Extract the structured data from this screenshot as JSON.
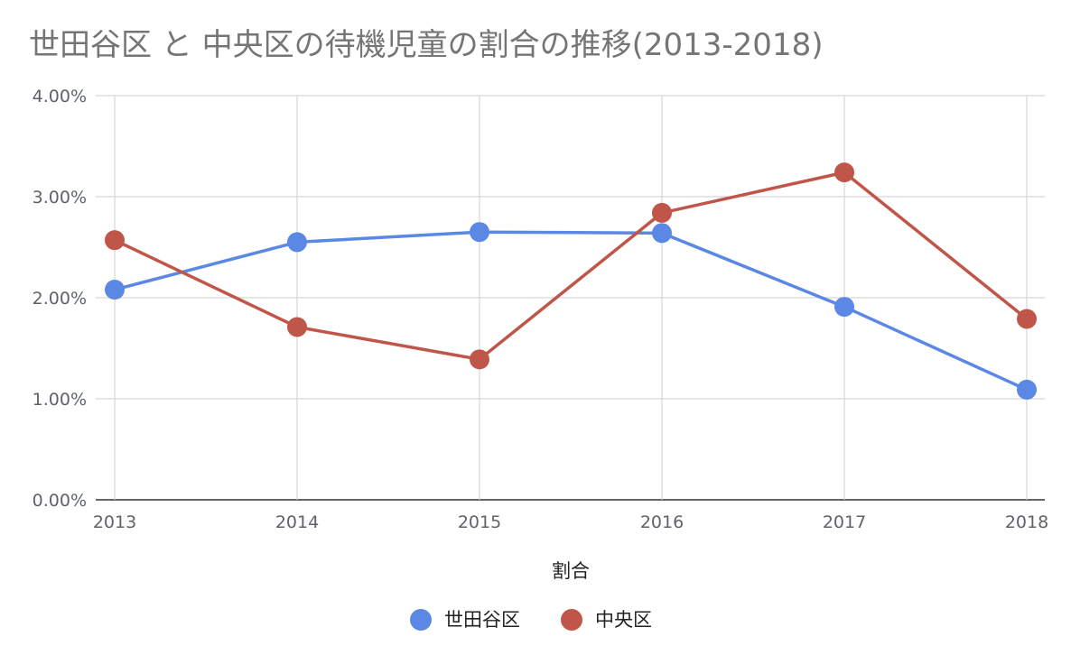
{
  "chart_data": {
    "type": "line",
    "title": "世田谷区 と 中央区の待機児童の割合の推移(2013-2018)",
    "xlabel": "割合",
    "ylabel": "",
    "categories": [
      "2013",
      "2014",
      "2015",
      "2016",
      "2017",
      "2018"
    ],
    "ylim": [
      0,
      0.04
    ],
    "y_ticks": [
      {
        "value": 0,
        "label": "0.00%"
      },
      {
        "value": 0.01,
        "label": "1.00%"
      },
      {
        "value": 0.02,
        "label": "2.00%"
      },
      {
        "value": 0.03,
        "label": "3.00%"
      },
      {
        "value": 0.04,
        "label": "4.00%"
      }
    ],
    "grid": true,
    "legend_position": "bottom",
    "series": [
      {
        "name": "世田谷区",
        "color": "#5b87e5",
        "values": [
          0.0208,
          0.0255,
          0.0265,
          0.0264,
          0.0191,
          0.0109
        ]
      },
      {
        "name": "中央区",
        "color": "#c0564a",
        "values": [
          0.0257,
          0.0171,
          0.0139,
          0.0284,
          0.0324,
          0.0179
        ]
      }
    ]
  }
}
